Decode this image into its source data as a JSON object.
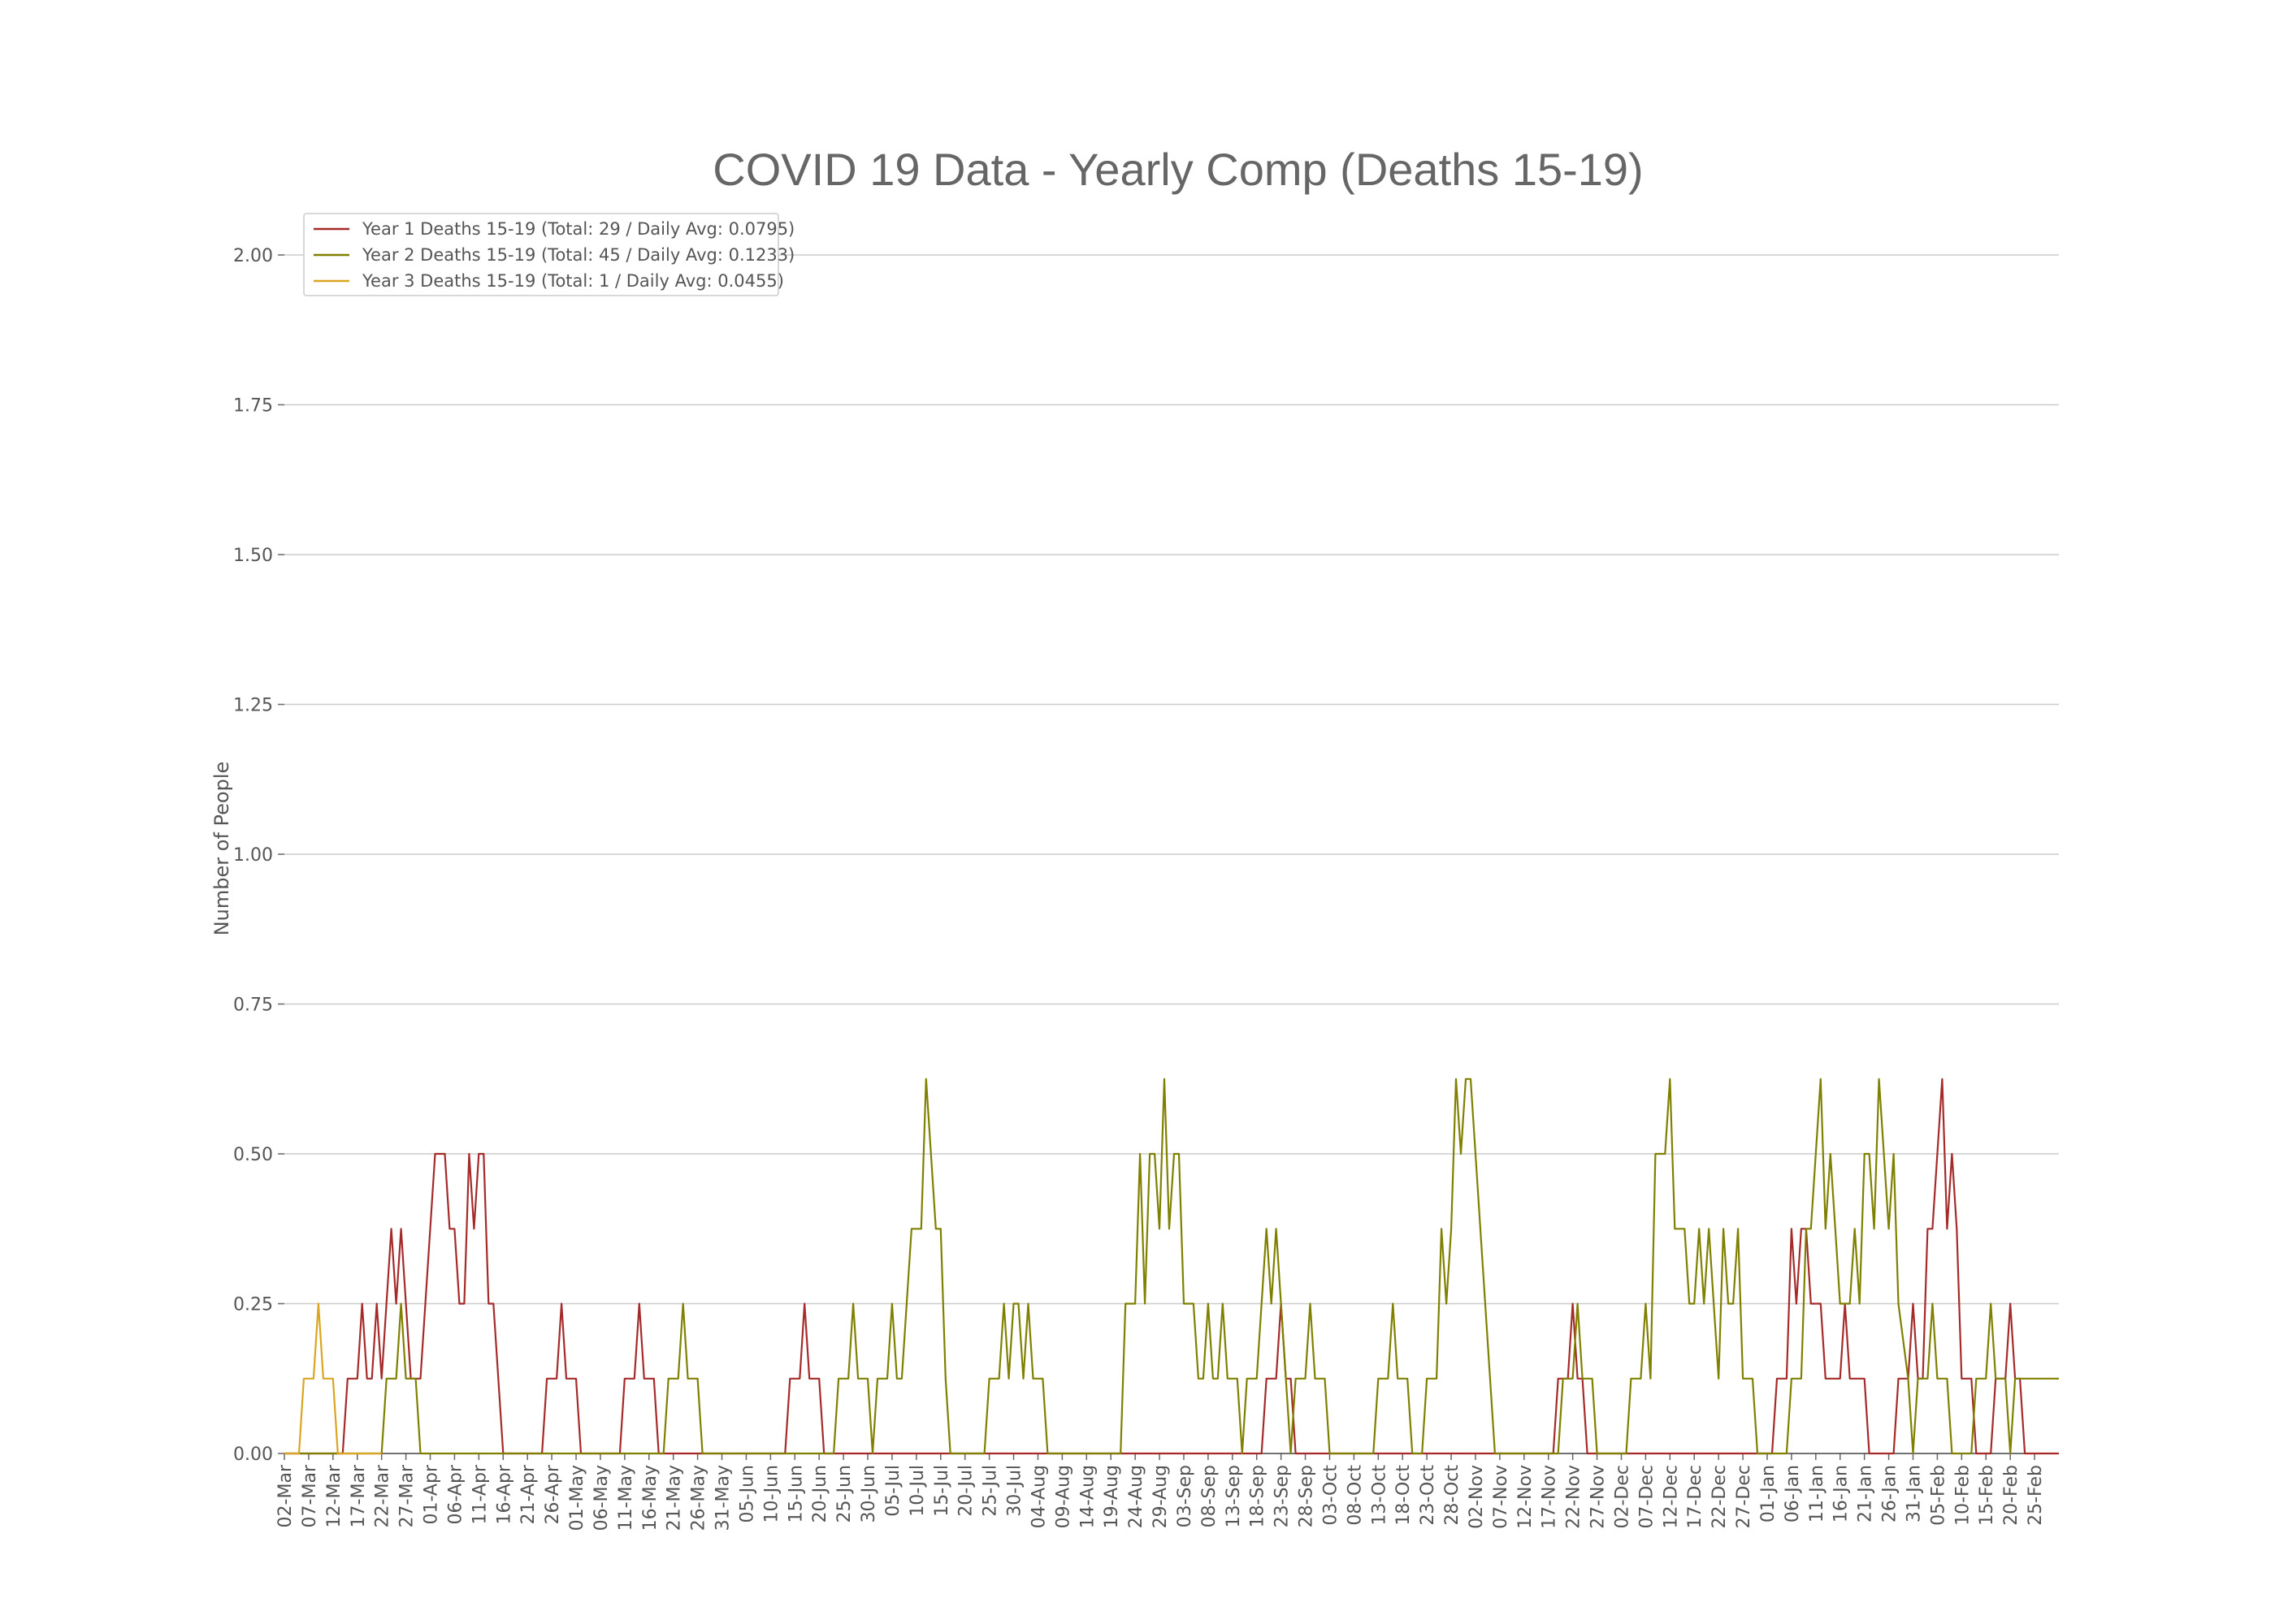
{
  "chart_data": {
    "type": "line",
    "title": "COVID 19 Data - Yearly Comp (Deaths 15-19)",
    "xlabel": "",
    "ylabel": "Number of People",
    "ylim": [
      0,
      2.0
    ],
    "yticks": [
      "0.00",
      "0.25",
      "0.50",
      "0.75",
      "1.00",
      "1.25",
      "1.50",
      "1.75",
      "2.00"
    ],
    "grid": true,
    "legend_position": "top-left",
    "x_start": "02-Mar",
    "x_days": 366,
    "tick_labels": [
      "02-Mar",
      "07-Mar",
      "12-Mar",
      "17-Mar",
      "22-Mar",
      "27-Mar",
      "01-Apr",
      "06-Apr",
      "11-Apr",
      "16-Apr",
      "21-Apr",
      "26-Apr",
      "01-May",
      "06-May",
      "11-May",
      "16-May",
      "21-May",
      "26-May",
      "31-May",
      "05-Jun",
      "10-Jun",
      "15-Jun",
      "20-Jun",
      "25-Jun",
      "30-Jun",
      "05-Jul",
      "10-Jul",
      "15-Jul",
      "20-Jul",
      "25-Jul",
      "30-Jul",
      "04-Aug",
      "09-Aug",
      "14-Aug",
      "19-Aug",
      "24-Aug",
      "29-Aug",
      "03-Sep",
      "08-Sep",
      "13-Sep",
      "18-Sep",
      "23-Sep",
      "28-Sep",
      "03-Oct",
      "08-Oct",
      "13-Oct",
      "18-Oct",
      "23-Oct",
      "28-Oct",
      "02-Nov",
      "07-Nov",
      "12-Nov",
      "17-Nov",
      "22-Nov",
      "27-Nov",
      "02-Dec",
      "07-Dec",
      "12-Dec",
      "17-Dec",
      "22-Dec",
      "27-Dec",
      "01-Jan",
      "06-Jan",
      "11-Jan",
      "16-Jan",
      "21-Jan",
      "26-Jan",
      "31-Jan",
      "05-Feb",
      "10-Feb",
      "15-Feb",
      "20-Feb",
      "25-Feb"
    ],
    "series": [
      {
        "name": "Year 1 Deaths 15-19 (Total: 29 / Daily Avg: 0.0795)",
        "color": "#a52a2a",
        "points": [
          [
            0,
            0
          ],
          [
            12,
            0
          ],
          [
            13,
            0.125
          ],
          [
            15,
            0.125
          ],
          [
            16,
            0.25
          ],
          [
            17,
            0.125
          ],
          [
            18,
            0.125
          ],
          [
            19,
            0.25
          ],
          [
            20,
            0.125
          ],
          [
            22,
            0.375
          ],
          [
            23,
            0.25
          ],
          [
            24,
            0.375
          ],
          [
            26,
            0.125
          ],
          [
            28,
            0.125
          ],
          [
            31,
            0.5
          ],
          [
            33,
            0.5
          ],
          [
            34,
            0.375
          ],
          [
            35,
            0.375
          ],
          [
            36,
            0.25
          ],
          [
            37,
            0.25
          ],
          [
            38,
            0.5
          ],
          [
            39,
            0.375
          ],
          [
            40,
            0.5
          ],
          [
            41,
            0.5
          ],
          [
            42,
            0.25
          ],
          [
            43,
            0.25
          ],
          [
            45,
            0
          ],
          [
            53,
            0
          ],
          [
            54,
            0.125
          ],
          [
            56,
            0.125
          ],
          [
            57,
            0.25
          ],
          [
            58,
            0.125
          ],
          [
            60,
            0.125
          ],
          [
            61,
            0
          ],
          [
            69,
            0
          ],
          [
            70,
            0.125
          ],
          [
            72,
            0.125
          ],
          [
            73,
            0.25
          ],
          [
            74,
            0.125
          ],
          [
            76,
            0.125
          ],
          [
            77,
            0
          ],
          [
            103,
            0
          ],
          [
            104,
            0.125
          ],
          [
            106,
            0.125
          ],
          [
            107,
            0.25
          ],
          [
            108,
            0.125
          ],
          [
            110,
            0.125
          ],
          [
            111,
            0
          ],
          [
            201,
            0
          ],
          [
            202,
            0.125
          ],
          [
            204,
            0.125
          ],
          [
            205,
            0.25
          ],
          [
            206,
            0.125
          ],
          [
            207,
            0.125
          ],
          [
            208,
            0
          ],
          [
            261,
            0
          ],
          [
            262,
            0.125
          ],
          [
            264,
            0.125
          ],
          [
            265,
            0.25
          ],
          [
            266,
            0.125
          ],
          [
            267,
            0.125
          ],
          [
            268,
            0
          ],
          [
            292,
            0
          ],
          [
            293,
            0.125
          ],
          [
            296,
            0.125
          ],
          [
            299,
            0.5
          ],
          [
            300,
            0.5
          ],
          [
            301,
            0.625
          ],
          [
            302,
            0.5
          ],
          [
            303,
            0.375
          ],
          [
            304,
            0.375
          ],
          [
            305,
            0.25
          ],
          [
            306,
            0.125
          ],
          [
            307,
            0.125
          ],
          [
            308,
            0.25
          ],
          [
            309,
            0.125
          ],
          [
            311,
            0.125
          ],
          [
            312,
            0
          ],
          [
            308,
            0
          ]
        ],
        "y1_extra": [
          [
            305,
            0
          ],
          [
            306,
            0
          ],
          [
            307,
            0.125
          ],
          [
            309,
            0.125
          ],
          [
            310,
            0.375
          ],
          [
            311,
            0.25
          ],
          [
            312,
            0.375
          ],
          [
            313,
            0.375
          ],
          [
            314,
            0.25
          ],
          [
            316,
            0.25
          ],
          [
            317,
            0.125
          ],
          [
            320,
            0.125
          ],
          [
            321,
            0.25
          ],
          [
            322,
            0.125
          ],
          [
            325,
            0.125
          ],
          [
            326,
            0
          ],
          [
            331,
            0
          ],
          [
            332,
            0.125
          ],
          [
            334,
            0.125
          ],
          [
            335,
            0.25
          ],
          [
            336,
            0.125
          ],
          [
            337,
            0.125
          ],
          [
            338,
            0.375
          ],
          [
            339,
            0.375
          ],
          [
            341,
            0.625
          ],
          [
            342,
            0.375
          ],
          [
            343,
            0.5
          ],
          [
            344,
            0.375
          ],
          [
            345,
            0.125
          ],
          [
            347,
            0.125
          ],
          [
            348,
            0
          ],
          [
            351,
            0
          ],
          [
            352,
            0.125
          ],
          [
            354,
            0.125
          ],
          [
            355,
            0.25
          ],
          [
            356,
            0.125
          ],
          [
            357,
            0.125
          ],
          [
            358,
            0
          ]
        ]
      },
      {
        "name": "Year 2 Deaths 15-19 (Total: 45 / Daily Avg: 0.1233)",
        "color": "#808000",
        "points": [
          [
            0,
            0
          ],
          [
            20,
            0
          ],
          [
            21,
            0.125
          ],
          [
            23,
            0.125
          ],
          [
            24,
            0.25
          ],
          [
            25,
            0.125
          ],
          [
            27,
            0.125
          ],
          [
            28,
            0
          ],
          [
            78,
            0
          ],
          [
            79,
            0.125
          ],
          [
            81,
            0.125
          ],
          [
            82,
            0.25
          ],
          [
            83,
            0.125
          ],
          [
            85,
            0.125
          ],
          [
            86,
            0
          ],
          [
            113,
            0
          ],
          [
            114,
            0.125
          ],
          [
            116,
            0.125
          ],
          [
            117,
            0.25
          ],
          [
            118,
            0.125
          ],
          [
            120,
            0.125
          ],
          [
            121,
            0
          ],
          [
            122,
            0.125
          ],
          [
            124,
            0.125
          ],
          [
            125,
            0.25
          ],
          [
            126,
            0.125
          ],
          [
            127,
            0.125
          ],
          [
            129,
            0.375
          ],
          [
            131,
            0.375
          ],
          [
            132,
            0.625
          ],
          [
            134,
            0.375
          ],
          [
            135,
            0.375
          ],
          [
            136,
            0.125
          ],
          [
            137,
            0
          ],
          [
            144,
            0
          ],
          [
            145,
            0.125
          ],
          [
            147,
            0.125
          ],
          [
            148,
            0.25
          ],
          [
            149,
            0.125
          ],
          [
            150,
            0.25
          ],
          [
            151,
            0.25
          ],
          [
            152,
            0.125
          ],
          [
            153,
            0.25
          ],
          [
            154,
            0.125
          ],
          [
            156,
            0.125
          ],
          [
            157,
            0
          ],
          [
            172,
            0
          ],
          [
            173,
            0.25
          ],
          [
            175,
            0.25
          ],
          [
            176,
            0.5
          ],
          [
            177,
            0.25
          ],
          [
            178,
            0.5
          ],
          [
            179,
            0.5
          ],
          [
            180,
            0.375
          ],
          [
            181,
            0.625
          ],
          [
            182,
            0.375
          ],
          [
            183,
            0.5
          ],
          [
            184,
            0.5
          ],
          [
            185,
            0.25
          ],
          [
            187,
            0.25
          ],
          [
            188,
            0.125
          ],
          [
            189,
            0.125
          ],
          [
            190,
            0.25
          ],
          [
            191,
            0.125
          ],
          [
            192,
            0.125
          ],
          [
            193,
            0.25
          ],
          [
            194,
            0.125
          ],
          [
            196,
            0.125
          ],
          [
            197,
            0
          ],
          [
            198,
            0.125
          ],
          [
            200,
            0.125
          ],
          [
            201,
            0.25
          ],
          [
            202,
            0.375
          ],
          [
            203,
            0.25
          ],
          [
            204,
            0.375
          ],
          [
            205,
            0.25
          ],
          [
            206,
            0.125
          ],
          [
            207,
            0
          ],
          [
            208,
            0.125
          ],
          [
            210,
            0.125
          ],
          [
            211,
            0.25
          ],
          [
            212,
            0.125
          ],
          [
            214,
            0.125
          ],
          [
            215,
            0
          ],
          [
            224,
            0
          ],
          [
            225,
            0.125
          ],
          [
            227,
            0.125
          ],
          [
            228,
            0.25
          ],
          [
            229,
            0.125
          ],
          [
            231,
            0.125
          ],
          [
            232,
            0
          ],
          [
            234,
            0
          ],
          [
            235,
            0.125
          ],
          [
            237,
            0.125
          ],
          [
            238,
            0.375
          ],
          [
            239,
            0.25
          ],
          [
            240,
            0.375
          ],
          [
            241,
            0.625
          ],
          [
            242,
            0.5
          ],
          [
            243,
            0.625
          ],
          [
            244,
            0.625
          ],
          [
            249,
            0
          ],
          [
            261,
            0
          ],
          [
            262,
            0
          ],
          [
            263,
            0.125
          ],
          [
            265,
            0.125
          ],
          [
            266,
            0.25
          ],
          [
            267,
            0.125
          ],
          [
            269,
            0.125
          ],
          [
            270,
            0
          ],
          [
            276,
            0
          ],
          [
            277,
            0.125
          ],
          [
            279,
            0.125
          ],
          [
            280,
            0.25
          ],
          [
            281,
            0.125
          ],
          [
            282,
            0.5
          ],
          [
            284,
            0.5
          ],
          [
            285,
            0.625
          ],
          [
            286,
            0.375
          ],
          [
            288,
            0.375
          ],
          [
            289,
            0.25
          ],
          [
            290,
            0.25
          ],
          [
            291,
            0.375
          ],
          [
            292,
            0.25
          ],
          [
            293,
            0.375
          ],
          [
            294,
            0.25
          ],
          [
            295,
            0.125
          ],
          [
            296,
            0.375
          ],
          [
            297,
            0.25
          ],
          [
            298,
            0.25
          ],
          [
            299,
            0.375
          ],
          [
            300,
            0.125
          ],
          [
            302,
            0.125
          ],
          [
            303,
            0
          ],
          [
            309,
            0
          ],
          [
            310,
            0.125
          ],
          [
            312,
            0.125
          ],
          [
            313,
            0.375
          ],
          [
            314,
            0.375
          ],
          [
            315,
            0.5
          ],
          [
            316,
            0.625
          ],
          [
            317,
            0.375
          ],
          [
            318,
            0.5
          ],
          [
            319,
            0.375
          ],
          [
            320,
            0.25
          ],
          [
            322,
            0.25
          ],
          [
            323,
            0.375
          ],
          [
            324,
            0.25
          ],
          [
            325,
            0.5
          ],
          [
            326,
            0.5
          ],
          [
            327,
            0.375
          ],
          [
            328,
            0.625
          ],
          [
            329,
            0.5
          ],
          [
            330,
            0.375
          ],
          [
            331,
            0.5
          ],
          [
            332,
            0.25
          ],
          [
            334,
            0.125
          ],
          [
            335,
            0
          ],
          [
            336,
            0.125
          ],
          [
            338,
            0.125
          ],
          [
            339,
            0.25
          ],
          [
            340,
            0.125
          ],
          [
            342,
            0.125
          ],
          [
            343,
            0
          ],
          [
            347,
            0
          ],
          [
            348,
            0.125
          ],
          [
            350,
            0.125
          ],
          [
            351,
            0.25
          ],
          [
            352,
            0.125
          ],
          [
            354,
            0.125
          ],
          [
            355,
            0
          ],
          [
            356,
            0.125
          ],
          [
            358,
            0.125
          ]
        ]
      },
      {
        "name": "Year 3 Deaths 15-19 (Total: 1 / Daily Avg: 0.0455)",
        "color": "#daa520",
        "points": [
          [
            0,
            0
          ],
          [
            3,
            0
          ],
          [
            4,
            0.125
          ],
          [
            6,
            0.125
          ],
          [
            7,
            0.25
          ],
          [
            8,
            0.125
          ],
          [
            10,
            0.125
          ],
          [
            11,
            0
          ]
        ]
      }
    ]
  }
}
